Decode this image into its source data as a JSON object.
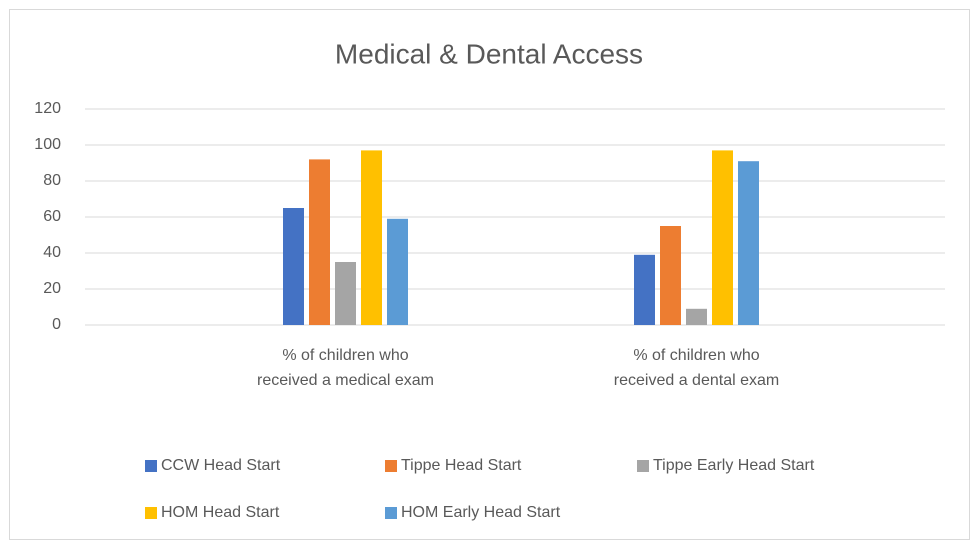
{
  "chart_data": {
    "type": "bar",
    "title": "Medical & Dental Access",
    "categories": [
      "% of children who received a medical exam",
      "% of children who received a dental exam"
    ],
    "series": [
      {
        "name": "CCW Head Start",
        "color": "#4472c4",
        "values": [
          65,
          39
        ]
      },
      {
        "name": "Tippe Head Start",
        "color": "#ed7d31",
        "values": [
          92,
          55
        ]
      },
      {
        "name": "Tippe Early Head Start",
        "color": "#a5a5a5",
        "values": [
          35,
          9
        ]
      },
      {
        "name": "HOM Head Start",
        "color": "#ffc000",
        "values": [
          97,
          97
        ]
      },
      {
        "name": "HOM Early Head Start",
        "color": "#5b9bd5",
        "values": [
          59,
          91
        ]
      }
    ],
    "ylim": [
      0,
      120
    ],
    "yticks": [
      0,
      20,
      40,
      60,
      80,
      100,
      120
    ],
    "grid": true,
    "legend": "bottom"
  }
}
